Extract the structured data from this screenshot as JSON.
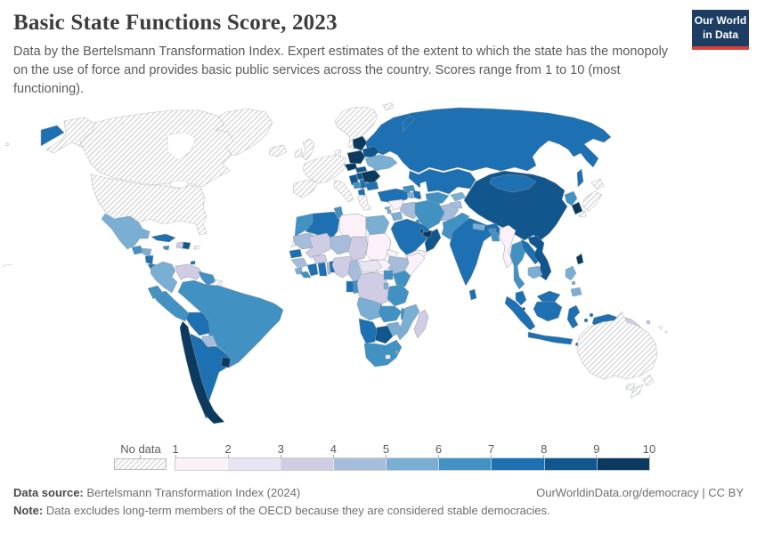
{
  "header": {
    "title": "Basic State Functions Score, 2023",
    "subtitle": "Data by the Bertelsmann Transformation Index. Expert estimates of the extent to which the state has the monopoly on the use of force and provides basic public services across the country. Scores range from 1 to 10 (most functioning)."
  },
  "logo": {
    "line1": "Our World",
    "line2": "in Data",
    "bg_color": "#1d3d63",
    "accent_color": "#dc3f38"
  },
  "legend": {
    "no_data_label": "No data"
  },
  "footer": {
    "source_label": "Data source:",
    "source_text": " Bertelsmann Transformation Index (2024)",
    "right_text": "OurWorldinData.org/democracy | CC BY",
    "note_label": "Note:",
    "note_text": " Data excludes long-term members of the OECD because they are considered stable democracies."
  },
  "chart_data": {
    "type": "heatmap",
    "subtype": "choropleth-world-map",
    "title": "Basic State Functions Score, 2023",
    "unit": "score, 1 to 10 (most functioning)",
    "legend_ticks": [
      "1",
      "2",
      "3",
      "4",
      "5",
      "6",
      "7",
      "8",
      "9",
      "10"
    ],
    "bins": [
      "1–2",
      "2–3",
      "3–4",
      "4–5",
      "5–6",
      "6–7",
      "7–8",
      "8–9",
      "9–10"
    ],
    "bin_colors": [
      "#fcf1f8",
      "#e9e4f1",
      "#cfcce4",
      "#a6bcda",
      "#7aaed3",
      "#4191c3",
      "#1d70b1",
      "#11568d",
      "#0b3a5e"
    ],
    "no_data_style": "white with gray diagonal hatching",
    "value_note": "values are bin indices 1-9 read from map colors; 'nd' = no data (hatched)",
    "regions": {
      "russia": 7,
      "kazakhstan": 7,
      "china": 8,
      "mongolia": 7,
      "india": 7,
      "baltic-states": 9,
      "poland": 9,
      "czechia": 9,
      "slovakia": 8,
      "hungary": 8,
      "croatia-slovenia": 8,
      "bosnia": 6,
      "serbia": 7,
      "albania-north-macedonia": 7,
      "romania": 9,
      "bulgaria": 7,
      "moldova": 5,
      "belarus": 8,
      "ukraine": 5,
      "turkey": 7,
      "cyprus": 5,
      "georgia": 6,
      "armenia": 5,
      "azerbaijan": 7,
      "uzbekistan": 6,
      "turkmenistan": 6,
      "kyrgyzstan": 5,
      "tajikistan": 4,
      "iran": 6,
      "afghanistan": 4,
      "pakistan": 6,
      "nepal": 5,
      "bhutan": 6,
      "bangladesh": 6,
      "sri-lanka": 7,
      "myanmar": 1,
      "thailand": 6,
      "laos": 7,
      "vietnam": 8,
      "cambodia": 5,
      "malaysia": 7,
      "singapore": 9,
      "indonesia": 7,
      "philippines": 5,
      "timor-leste": 5,
      "papua-new-guinea": 3,
      "taiwan": 9,
      "north-korea": 6,
      "south-korea": 9,
      "syria": 1,
      "lebanon": 5,
      "jordan": 5,
      "iraq": 4,
      "kuwait": 6,
      "saudi-arabia": 7,
      "yemen": 1,
      "oman": 8,
      "uae": 9,
      "qatar": 9,
      "mexico": 5,
      "guatemala": 6,
      "honduras": 5,
      "nicaragua": 7,
      "costa-rica": 7,
      "panama": 8,
      "cuba": 7,
      "jamaica": 6,
      "haiti": 3,
      "dominican-republic": 8,
      "trinidad-and-tobago": 7,
      "colombia": 5,
      "venezuela": 3,
      "guyana": 6,
      "brazil": 6,
      "ecuador": 6,
      "peru": 6,
      "bolivia": 7,
      "paraguay": 4,
      "chile": 9,
      "argentina": 7,
      "uruguay": 9,
      "morocco": 6,
      "algeria": 7,
      "tunisia": 6,
      "libya": 1,
      "egypt": 5,
      "mauritania": 4,
      "mali": 3,
      "niger": 4,
      "chad": 3,
      "sudan": 1,
      "south-sudan": 1,
      "eritrea": 1,
      "djibouti": 5,
      "ethiopia": 4,
      "somalia": 1,
      "senegal": 7,
      "guinea": 4,
      "sierra-leone": 5,
      "liberia": 6,
      "ivory-coast": 7,
      "burkina-faso": 3,
      "ghana": 7,
      "togo": 4,
      "benin": 7,
      "nigeria": 3,
      "cameroon": 4,
      "central-african-republic": 2,
      "gabon": 7,
      "congo": 6,
      "dr-congo": 3,
      "uganda": 6,
      "kenya": 6,
      "rwanda-burundi": 5,
      "tanzania": 6,
      "angola": 5,
      "zambia": 6,
      "malawi": 6,
      "mozambique": 5,
      "zimbabwe": 5,
      "botswana": 8,
      "namibia": 7,
      "south-africa": 6,
      "eswatini": 5,
      "madagascar": 3,
      "united-states": "nd",
      "canada": "nd",
      "alaska": "nd",
      "greenland": "nd",
      "iceland": "nd",
      "united-kingdom": "nd",
      "ireland": "nd",
      "scandinavia": "nd",
      "denmark": "nd",
      "western-europe": "nd",
      "spain-portugal": "nd",
      "italy": "nd",
      "greece": "nd",
      "japan": "nd",
      "australia": "nd",
      "new-zealand": "nd",
      "french-guiana": "nd",
      "western-sahara": "nd",
      "puerto-rico": "nd",
      "lesotho": "nd",
      "svalbard": "nd",
      "solomon-islands": "nd"
    }
  }
}
